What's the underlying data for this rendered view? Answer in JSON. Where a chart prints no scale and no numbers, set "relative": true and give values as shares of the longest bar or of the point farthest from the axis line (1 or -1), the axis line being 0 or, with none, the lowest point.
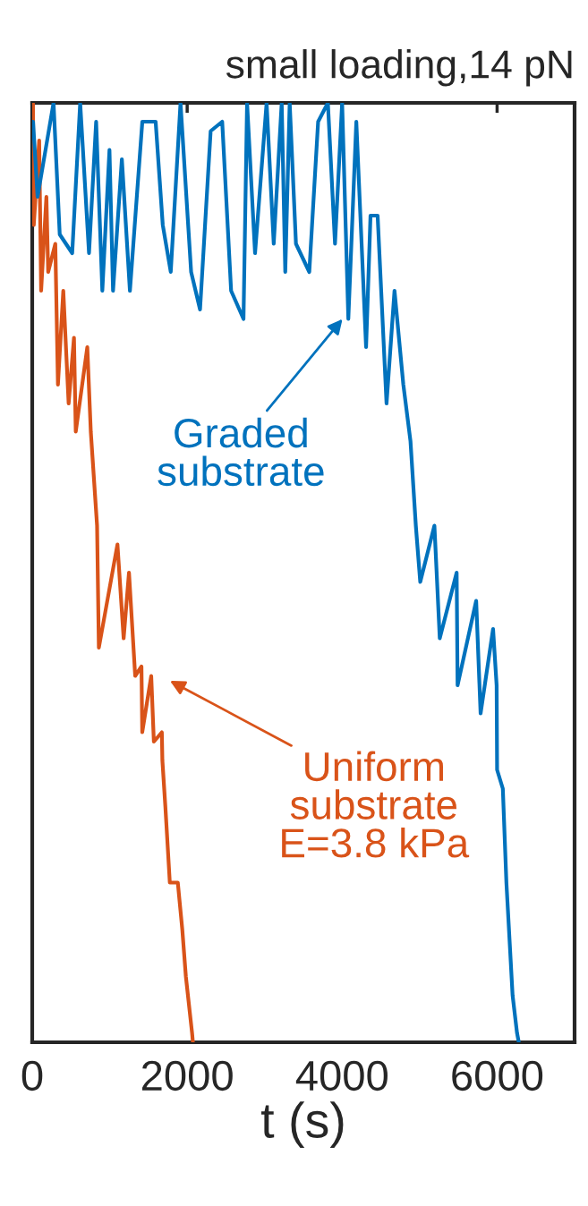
{
  "chart_data": {
    "type": "line",
    "title": "small loading,14 pN",
    "xlabel": "t (s)",
    "relative": true,
    "xlim": [
      0,
      7000
    ],
    "xticks": [
      0,
      2000,
      4000,
      6000
    ],
    "grid": false,
    "legend": false,
    "marker": "none",
    "line_style": "solid",
    "series": [
      {
        "color": "#0072bd",
        "x": [
          11,
          69,
          275,
          355,
          516,
          619,
          733,
          825,
          905,
          997,
          1043,
          1157,
          1261,
          1421,
          1593,
          1685,
          1788,
          1914,
          2051,
          2166,
          2303,
          2452,
          2567,
          2727,
          2773,
          2876,
          3025,
          3117,
          3220,
          3266,
          3323,
          3404,
          3576,
          3690,
          3816,
          3908,
          4000,
          4080,
          4183,
          4309,
          4366,
          4458,
          4573,
          4676,
          4790,
          4882,
          4951,
          5008,
          5191,
          5260,
          5478,
          5490,
          5730,
          5787,
          5948,
          5994,
          6000,
          6074,
          6120,
          6200,
          6257,
          6280
        ],
        "values": [
          0.98,
          0.9,
          1.0,
          0.86,
          0.84,
          1.0,
          0.84,
          0.98,
          0.8,
          0.95,
          0.8,
          0.94,
          0.8,
          0.98,
          0.98,
          0.87,
          0.82,
          1.0,
          0.82,
          0.78,
          0.97,
          0.98,
          0.8,
          0.77,
          1.0,
          0.84,
          1.0,
          0.85,
          1.0,
          0.82,
          1.0,
          0.85,
          0.82,
          0.98,
          1.0,
          0.85,
          1.0,
          0.77,
          0.98,
          0.74,
          0.88,
          0.88,
          0.68,
          0.8,
          0.7,
          0.64,
          0.55,
          0.49,
          0.55,
          0.43,
          0.5,
          0.38,
          0.47,
          0.35,
          0.44,
          0.38,
          0.29,
          0.27,
          0.17,
          0.05,
          0.01,
          0
        ]
      },
      {
        "color": "#d95319",
        "x": [
          10,
          20,
          90,
          115,
          183,
          206,
          298,
          332,
          401,
          470,
          539,
          562,
          711,
          756,
          837,
          860,
          1100,
          1180,
          1249,
          1329,
          1410,
          1420,
          1536,
          1570,
          1673,
          1680,
          1719,
          1776,
          1879,
          1937,
          1983,
          2063,
          2074
        ],
        "values": [
          1.0,
          0.87,
          0.96,
          0.8,
          0.9,
          0.82,
          0.85,
          0.7,
          0.8,
          0.68,
          0.75,
          0.65,
          0.74,
          0.65,
          0.55,
          0.42,
          0.53,
          0.43,
          0.5,
          0.39,
          0.4,
          0.33,
          0.39,
          0.32,
          0.33,
          0.3,
          0.25,
          0.17,
          0.17,
          0.12,
          0.07,
          0.01,
          0
        ]
      }
    ],
    "annotations": [
      "Graded\nsubstrate",
      "Uniform\nsubstrate\nE=3.8 kPa"
    ]
  }
}
